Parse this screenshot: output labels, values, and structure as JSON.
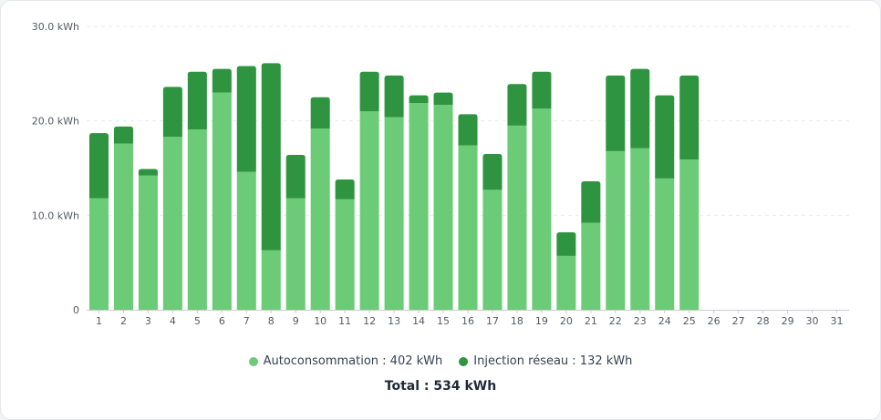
{
  "chart_data": {
    "type": "bar",
    "stacked": true,
    "categories": [
      "1",
      "2",
      "3",
      "4",
      "5",
      "6",
      "7",
      "8",
      "9",
      "10",
      "11",
      "12",
      "13",
      "14",
      "15",
      "16",
      "17",
      "18",
      "19",
      "20",
      "21",
      "22",
      "23",
      "24",
      "25",
      "26",
      "27",
      "28",
      "29",
      "30",
      "31"
    ],
    "series": [
      {
        "name": "Autoconsommation",
        "color": "#6bcb77",
        "values": [
          11.8,
          17.6,
          14.2,
          18.3,
          19.1,
          23.0,
          14.6,
          6.3,
          11.8,
          19.2,
          11.7,
          21.0,
          20.4,
          21.9,
          21.7,
          17.4,
          12.7,
          19.5,
          21.3,
          5.7,
          9.2,
          16.8,
          17.1,
          13.9,
          15.9,
          0,
          0,
          0,
          0,
          0,
          0
        ]
      },
      {
        "name": "Injection réseau",
        "color": "#2f9440",
        "values": [
          6.9,
          1.8,
          0.7,
          5.3,
          6.1,
          2.5,
          11.2,
          19.8,
          4.6,
          3.3,
          2.1,
          4.2,
          4.4,
          0.8,
          1.3,
          3.3,
          3.8,
          4.4,
          3.9,
          2.5,
          4.4,
          8.0,
          8.4,
          8.8,
          8.9,
          0,
          0,
          0,
          0,
          0,
          0
        ]
      }
    ],
    "y_ticks": [
      "0",
      "10.0 kWh",
      "20.0 kWh",
      "30.0 kWh"
    ],
    "y_tick_values": [
      0,
      10,
      20,
      30
    ],
    "ylim": [
      0,
      30
    ],
    "grid": true
  },
  "legend": {
    "items": [
      {
        "label": "Autoconsommation : 402 kWh",
        "color": "#6bcb77"
      },
      {
        "label": "Injection réseau : 132 kWh",
        "color": "#2f9440"
      }
    ]
  },
  "total": "Total : 534 kWh"
}
